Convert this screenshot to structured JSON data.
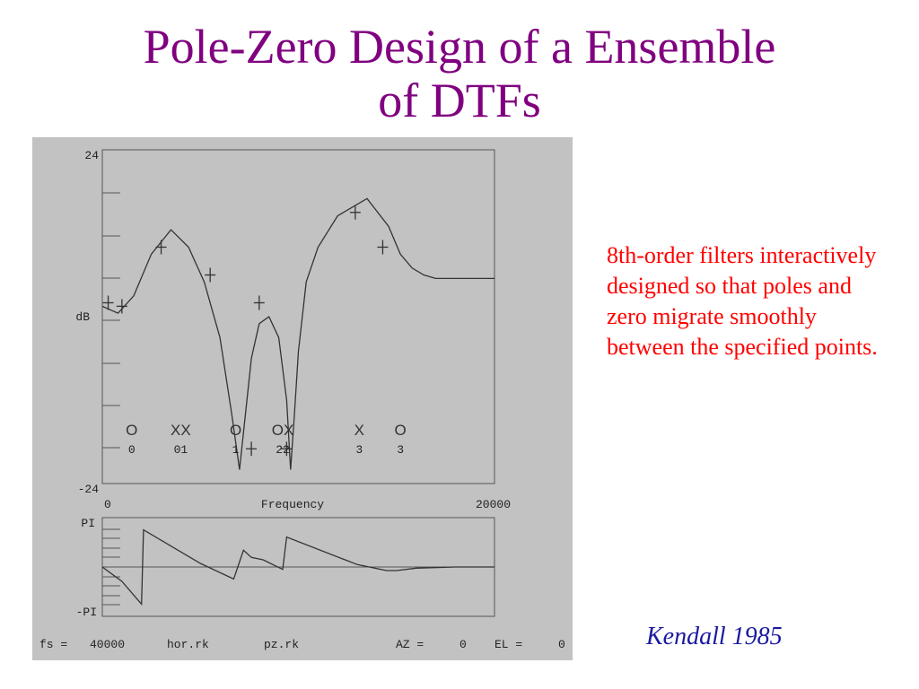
{
  "title_line1": "Pole-Zero Design of a Ensemble",
  "title_line2": "of DTFs",
  "caption": "8th-order filters interactively designed so that poles and zero migrate smoothly between the specified points.",
  "citation": "Kendall 1985",
  "colors": {
    "title": "#800080",
    "caption": "#ff0000",
    "citation": "#1a1aa0",
    "panel": "#c2c2c2"
  },
  "chart_data": [
    {
      "type": "line",
      "name": "magnitude",
      "ylabel": "dB",
      "xlabel": "Frequency",
      "xlim": [
        0,
        20000
      ],
      "ylim": [
        -24,
        24
      ],
      "ytick_labels": [
        "24",
        "dB",
        "-24"
      ],
      "xtick_labels": [
        "0",
        "20000"
      ],
      "x": [
        0,
        800,
        1600,
        2500,
        3500,
        4400,
        5200,
        6000,
        6600,
        7000,
        7300,
        7600,
        8000,
        8500,
        9000,
        9400,
        9600,
        9800,
        10000,
        10400,
        11000,
        12000,
        13500,
        14600,
        15200,
        15800,
        16400,
        17000,
        18000,
        20000
      ],
      "y": [
        1.5,
        0.5,
        3,
        9,
        12.5,
        10,
        5,
        -3,
        -14,
        -22,
        -14,
        -6,
        -1,
        0,
        -3,
        -12,
        -22,
        -14,
        -5,
        5,
        10,
        14.5,
        17,
        13,
        9,
        7,
        6,
        5.5,
        5.5,
        5.5
      ],
      "markers_plus": [
        {
          "x": 300,
          "y": 2
        },
        {
          "x": 1000,
          "y": 1.5
        },
        {
          "x": 3000,
          "y": 10
        },
        {
          "x": 5500,
          "y": 6
        },
        {
          "x": 7600,
          "y": -19
        },
        {
          "x": 8000,
          "y": 2
        },
        {
          "x": 9400,
          "y": -19
        },
        {
          "x": 12900,
          "y": 15
        },
        {
          "x": 14300,
          "y": 10
        }
      ],
      "pole_zero_marks": [
        {
          "x": 1500,
          "symbol": "O",
          "label": "0"
        },
        {
          "x": 4000,
          "symbol": "XX",
          "label": "01"
        },
        {
          "x": 6800,
          "symbol": "O",
          "label": "1"
        },
        {
          "x": 9200,
          "symbol": "OX",
          "label": "22"
        },
        {
          "x": 13100,
          "symbol": "X",
          "label": "3"
        },
        {
          "x": 15200,
          "symbol": "O",
          "label": "3"
        }
      ]
    },
    {
      "type": "line",
      "name": "phase",
      "ytick_labels": [
        "PI",
        "-PI"
      ],
      "xlim": [
        0,
        20000
      ],
      "ylim": [
        -3.1416,
        3.1416
      ],
      "x": [
        0,
        1000,
        2000,
        2100,
        5000,
        6700,
        7200,
        7600,
        8200,
        9200,
        9400,
        13000,
        14500,
        15000,
        16000,
        18000,
        20000
      ],
      "y": [
        0,
        -1.2,
        -3.1,
        3.1,
        0.3,
        -1.0,
        1.4,
        0.8,
        0.6,
        -0.2,
        2.5,
        0.2,
        -0.3,
        -0.3,
        -0.1,
        0,
        0
      ]
    }
  ],
  "status_bar": {
    "fs_label": "fs =",
    "fs_value": "40000",
    "file1": "hor.rk",
    "file2": "pz.rk",
    "az_label": "AZ =",
    "az_value": "0",
    "el_label": "EL =",
    "el_value": "0"
  }
}
